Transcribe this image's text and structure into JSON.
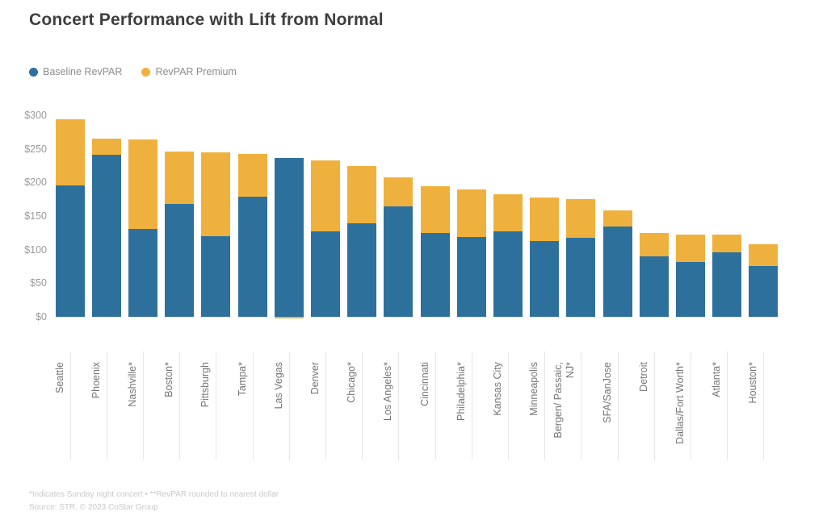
{
  "title": "Concert Performance with Lift from Normal",
  "legend": {
    "items": [
      {
        "label": "Baseline RevPAR",
        "color": "#2e709c"
      },
      {
        "label": "RevPAR Premium",
        "color": "#efb13e"
      }
    ]
  },
  "footer": {
    "note": "*Indicates Sunday night concert • **RevPAR rounded to nearest dollar",
    "source": "Source: STR. © 2023 CoStar Group"
  },
  "colors": {
    "baseline": "#2e709c",
    "premium": "#efb13e",
    "title": "#3e3e3e",
    "axis_text": "#9a9a9a",
    "divider": "#e7e7e7"
  },
  "chart_data": {
    "type": "bar",
    "stacked": true,
    "title": "Concert Performance with Lift from Normal",
    "categories": [
      "Seattle",
      "Phoenix",
      "Nashville*",
      "Boston*",
      "Pittsburgh",
      "Tampa*",
      "Las Vegas",
      "Denver",
      "Chicago*",
      "Los Angeles*",
      "Cincinnati",
      "Philadelphia*",
      "Kansas City",
      "Minneapolis",
      "Bergen/ Passaic,\nNJ*",
      "SFA/SanJose",
      "Detroit",
      "Dallas/Fort Worth*",
      "Atlanta*",
      "Houston*"
    ],
    "series": [
      {
        "name": "Baseline RevPAR",
        "color": "#2e709c",
        "values": [
          196,
          241,
          131,
          168,
          120,
          179,
          237,
          127,
          139,
          165,
          125,
          119,
          127,
          113,
          118,
          134,
          90,
          82,
          96,
          76
        ]
      },
      {
        "name": "RevPAR Premium",
        "color": "#efb13e",
        "values": [
          98,
          24,
          133,
          78,
          125,
          64,
          -2,
          106,
          85,
          43,
          69,
          71,
          55,
          65,
          57,
          25,
          35,
          40,
          26,
          32
        ]
      }
    ],
    "xlabel": "",
    "ylabel": "",
    "y_ticks": [
      "$300",
      "$250",
      "$200",
      "$150",
      "$100",
      "$50",
      "$0"
    ],
    "ylim": [
      0,
      300
    ],
    "grid": false,
    "legend_position": "top-left"
  }
}
